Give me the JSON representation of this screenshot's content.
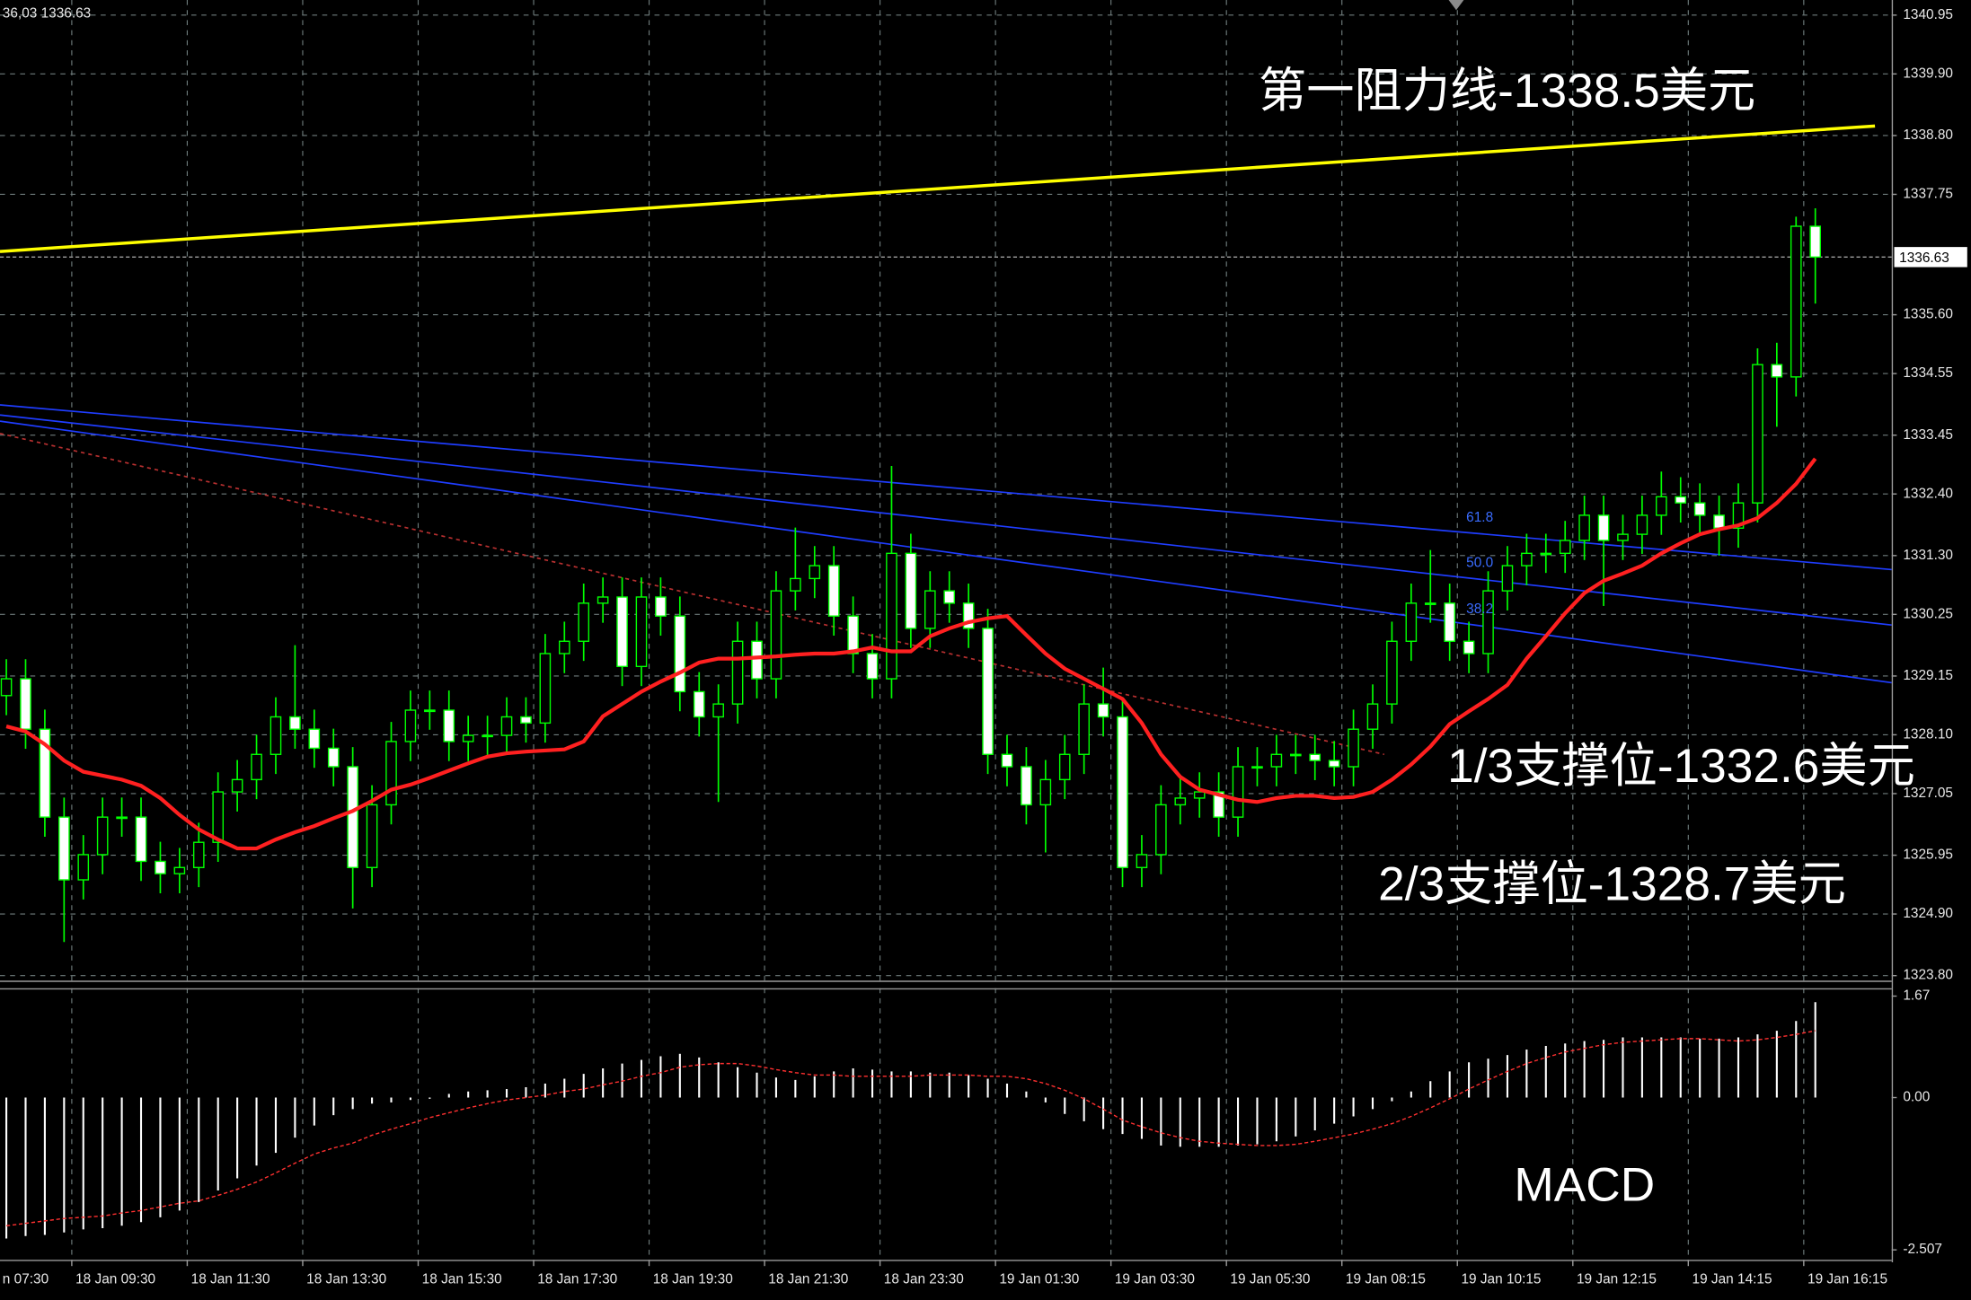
{
  "chart_data": [
    {
      "type": "candlestick",
      "corner_text": "36,03 1336.63",
      "open": [
        1328.8,
        1329.1,
        1328.2,
        1326.63,
        1325.51,
        1325.96,
        1326.63,
        1326.63,
        1325.84,
        1325.62,
        1325.73,
        1326.18,
        1327.08,
        1327.3,
        1327.75,
        1328.42,
        1328.2,
        1327.86,
        1327.53,
        1325.73,
        1326.85,
        1327.98,
        1328.54,
        1328.54,
        1327.98,
        1328.09,
        1328.09,
        1328.42,
        1328.31,
        1329.55,
        1329.77,
        1330.45,
        1330.56,
        1329.32,
        1330.56,
        1330.22,
        1328.87,
        1328.42,
        1328.65,
        1329.77,
        1329.1,
        1330.67,
        1330.89,
        1331.12,
        1330.22,
        1329.55,
        1329.1,
        1331.34,
        1330.0,
        1330.67,
        1330.45,
        1330.0,
        1327.75,
        1327.53,
        1326.85,
        1327.3,
        1327.75,
        1328.65,
        1328.42,
        1325.73,
        1325.96,
        1326.85,
        1326.97,
        1327.08,
        1326.63,
        1327.53,
        1327.53,
        1327.75,
        1327.75,
        1327.64,
        1327.53,
        1328.2,
        1328.65,
        1329.77,
        1330.45,
        1330.45,
        1329.77,
        1329.55,
        1330.67,
        1331.12,
        1331.34,
        1331.34,
        1331.57,
        1332.02,
        1331.57,
        1331.68,
        1332.02,
        1332.35,
        1332.24,
        1332.02,
        1331.79,
        1332.24,
        1334.71,
        1334.49,
        1337.18
      ],
      "high": [
        1329.45,
        1329.45,
        1328.55,
        1326.98,
        1326.31,
        1326.98,
        1326.98,
        1326.98,
        1326.19,
        1326.08,
        1326.53,
        1327.43,
        1327.65,
        1328.1,
        1328.77,
        1329.7,
        1328.55,
        1328.21,
        1327.88,
        1327.2,
        1328.33,
        1328.89,
        1328.89,
        1328.89,
        1328.44,
        1328.44,
        1328.77,
        1328.77,
        1329.9,
        1330.12,
        1330.8,
        1330.91,
        1330.91,
        1330.91,
        1330.91,
        1330.57,
        1329.22,
        1329.0,
        1330.12,
        1330.12,
        1331.02,
        1331.8,
        1331.47,
        1331.47,
        1330.57,
        1329.9,
        1332.9,
        1331.69,
        1331.02,
        1331.02,
        1330.8,
        1330.35,
        1328.1,
        1327.88,
        1327.65,
        1328.1,
        1329.0,
        1329.3,
        1328.77,
        1326.31,
        1327.2,
        1327.32,
        1327.43,
        1327.43,
        1327.88,
        1327.88,
        1328.1,
        1328.1,
        1328.1,
        1327.99,
        1328.55,
        1329.0,
        1330.12,
        1330.8,
        1331.4,
        1330.8,
        1330.12,
        1331.02,
        1331.47,
        1331.69,
        1331.69,
        1331.92,
        1332.37,
        1332.37,
        1332.03,
        1332.37,
        1332.8,
        1332.7,
        1332.59,
        1332.37,
        1332.59,
        1335.0,
        1335.1,
        1337.35,
        1337.5
      ],
      "low": [
        1328.45,
        1327.85,
        1326.28,
        1324.4,
        1325.16,
        1325.61,
        1326.28,
        1325.49,
        1325.27,
        1325.27,
        1325.38,
        1325.83,
        1326.73,
        1326.95,
        1327.4,
        1327.85,
        1327.51,
        1327.18,
        1325.0,
        1325.38,
        1326.5,
        1327.63,
        1328.19,
        1327.63,
        1327.63,
        1327.74,
        1327.74,
        1327.96,
        1327.96,
        1329.2,
        1329.42,
        1330.1,
        1328.97,
        1328.97,
        1329.87,
        1328.52,
        1328.07,
        1326.9,
        1328.3,
        1328.75,
        1328.75,
        1330.32,
        1330.54,
        1329.87,
        1329.2,
        1328.75,
        1328.75,
        1329.65,
        1329.65,
        1330.1,
        1329.65,
        1327.4,
        1327.18,
        1326.5,
        1326.0,
        1326.95,
        1327.4,
        1328.07,
        1325.38,
        1325.38,
        1325.61,
        1326.5,
        1326.62,
        1326.28,
        1326.28,
        1327.18,
        1327.18,
        1327.4,
        1327.29,
        1327.18,
        1327.18,
        1327.85,
        1328.3,
        1329.42,
        1330.1,
        1329.42,
        1329.2,
        1329.2,
        1330.32,
        1330.77,
        1330.99,
        1330.99,
        1331.22,
        1330.4,
        1331.22,
        1331.33,
        1331.67,
        1331.89,
        1331.67,
        1331.3,
        1331.44,
        1331.89,
        1333.6,
        1334.14,
        1335.8
      ],
      "close": [
        1329.1,
        1328.2,
        1326.63,
        1325.51,
        1325.96,
        1326.63,
        1326.63,
        1325.84,
        1325.62,
        1325.73,
        1326.18,
        1327.08,
        1327.3,
        1327.75,
        1328.42,
        1328.2,
        1327.86,
        1327.53,
        1325.73,
        1326.85,
        1327.98,
        1328.54,
        1328.54,
        1327.98,
        1328.09,
        1328.09,
        1328.42,
        1328.31,
        1329.55,
        1329.77,
        1330.45,
        1330.56,
        1329.32,
        1330.56,
        1330.22,
        1328.87,
        1328.42,
        1328.65,
        1329.77,
        1329.1,
        1330.67,
        1330.89,
        1331.12,
        1330.22,
        1329.55,
        1329.1,
        1331.34,
        1330.0,
        1330.67,
        1330.45,
        1330.0,
        1327.75,
        1327.53,
        1326.85,
        1327.3,
        1327.75,
        1328.65,
        1328.42,
        1325.73,
        1325.96,
        1326.85,
        1326.97,
        1327.08,
        1326.63,
        1327.53,
        1327.53,
        1327.75,
        1327.75,
        1327.64,
        1327.53,
        1328.2,
        1328.65,
        1329.77,
        1330.45,
        1330.45,
        1329.77,
        1329.55,
        1330.67,
        1331.12,
        1331.34,
        1331.34,
        1331.57,
        1332.02,
        1331.57,
        1331.68,
        1332.02,
        1332.35,
        1332.24,
        1332.02,
        1331.79,
        1332.24,
        1334.71,
        1334.49,
        1337.18,
        1336.63
      ],
      "bull_fill": "#000000",
      "bear_fill": "#ffffff",
      "wick_color": "#00ff00",
      "ma": {
        "color": "#ff2020",
        "values": [
          1328.25,
          1328.16,
          1327.93,
          1327.64,
          1327.44,
          1327.37,
          1327.3,
          1327.19,
          1326.97,
          1326.67,
          1326.41,
          1326.23,
          1326.07,
          1326.07,
          1326.23,
          1326.36,
          1326.47,
          1326.61,
          1326.74,
          1326.92,
          1327.12,
          1327.21,
          1327.33,
          1327.46,
          1327.59,
          1327.71,
          1327.77,
          1327.8,
          1327.82,
          1327.84,
          1327.98,
          1328.43,
          1328.65,
          1328.87,
          1329.05,
          1329.21,
          1329.39,
          1329.46,
          1329.46,
          1329.48,
          1329.5,
          1329.53,
          1329.55,
          1329.55,
          1329.59,
          1329.66,
          1329.59,
          1329.59,
          1329.86,
          1330.0,
          1330.11,
          1330.18,
          1330.22,
          1329.88,
          1329.55,
          1329.28,
          1329.1,
          1328.92,
          1328.74,
          1328.31,
          1327.75,
          1327.35,
          1327.12,
          1327.03,
          1326.94,
          1326.9,
          1326.97,
          1327.01,
          1327.01,
          1326.97,
          1326.99,
          1327.08,
          1327.3,
          1327.57,
          1327.89,
          1328.29,
          1328.52,
          1328.74,
          1328.99,
          1329.46,
          1329.86,
          1330.27,
          1330.63,
          1330.85,
          1330.98,
          1331.12,
          1331.34,
          1331.52,
          1331.68,
          1331.77,
          1331.84,
          1331.97,
          1332.24,
          1332.58,
          1333.03
        ]
      },
      "lines": [
        {
          "color": "#ffff00",
          "x": [
            -0.33,
            97.1
          ],
          "y": [
            1336.73,
            1338.97
          ]
        },
        {
          "color": "#1f3dff",
          "x": [
            -0.33,
            97.97
          ],
          "y": [
            1333.99,
            1331.05
          ]
        },
        {
          "color": "#1f3dff",
          "x": [
            -0.33,
            97.97
          ],
          "y": [
            1333.81,
            1330.06
          ]
        },
        {
          "color": "#1f3dff",
          "x": [
            -0.33,
            97.97
          ],
          "y": [
            1333.7,
            1329.03
          ]
        },
        {
          "color": "#b83030",
          "dashed": true,
          "x": [
            -0.33,
            71.6
          ],
          "y": [
            1333.48,
            1327.75
          ]
        }
      ],
      "fib_levels": [
        "61.8",
        "50.0",
        "38.2"
      ],
      "current_price": 1336.63,
      "annotations": [
        "第一阻力线-1338.5美元",
        "1/3支撑位-1332.6美元",
        "2/3支撑位-1328.7美元"
      ],
      "xlim": [
        -0.33,
        97.97
      ],
      "xticks": [
        {
          "value": -2.6,
          "label": "n 07:30"
        },
        {
          "value": 3.4,
          "label": "18 Jan 09:30"
        },
        {
          "value": 9.4,
          "label": "18 Jan 11:30"
        },
        {
          "value": 15.4,
          "label": "18 Jan 13:30"
        },
        {
          "value": 21.4,
          "label": "18 Jan 15:30"
        },
        {
          "value": 27.4,
          "label": "18 Jan 17:30"
        },
        {
          "value": 33.4,
          "label": "18 Jan 19:30"
        },
        {
          "value": 39.4,
          "label": "18 Jan 21:30"
        },
        {
          "value": 45.4,
          "label": "18 Jan 23:30"
        },
        {
          "value": 51.4,
          "label": "19 Jan 01:30"
        },
        {
          "value": 57.4,
          "label": "19 Jan 03:30"
        },
        {
          "value": 63.4,
          "label": "19 Jan 05:30"
        },
        {
          "value": 69.4,
          "label": "19 Jan 08:15"
        },
        {
          "value": 75.4,
          "label": "19 Jan 10:15"
        },
        {
          "value": 81.4,
          "label": "19 Jan 12:15"
        },
        {
          "value": 87.4,
          "label": "19 Jan 14:15"
        },
        {
          "value": 93.4,
          "label": "19 Jan 16:15"
        }
      ],
      "ylim": [
        1323.71,
        1341.22
      ],
      "yticks": [
        1340.95,
        {
          "value": 1339.9,
          "label": "1339.90"
        },
        {
          "value": 1338.8,
          "label": "1338.80"
        },
        1337.75,
        {
          "value": 1335.6,
          "label": "1335.60"
        },
        1334.55,
        1333.45,
        {
          "value": 1332.4,
          "label": "1332.40"
        },
        {
          "value": 1331.3,
          "label": "1331.30"
        },
        1330.25,
        1329.15,
        {
          "value": 1328.1,
          "label": "1328.10"
        },
        1327.05,
        1325.95,
        {
          "value": 1324.9,
          "label": "1324.90"
        },
        {
          "value": 1323.8,
          "label": "1323.80"
        }
      ],
      "grid": true
    },
    {
      "type": "macd",
      "label": "MACD",
      "histogram": [
        -2.32,
        -2.28,
        -2.26,
        -2.22,
        -2.17,
        -2.15,
        -2.11,
        -2.05,
        -1.97,
        -1.86,
        -1.72,
        -1.53,
        -1.33,
        -1.12,
        -0.91,
        -0.66,
        -0.46,
        -0.29,
        -0.19,
        -0.1,
        -0.08,
        -0.04,
        -0.02,
        0.06,
        0.1,
        0.12,
        0.14,
        0.17,
        0.23,
        0.31,
        0.39,
        0.48,
        0.56,
        0.62,
        0.68,
        0.72,
        0.66,
        0.58,
        0.5,
        0.41,
        0.33,
        0.29,
        0.35,
        0.43,
        0.48,
        0.46,
        0.43,
        0.43,
        0.41,
        0.41,
        0.37,
        0.31,
        0.23,
        0.1,
        -0.08,
        -0.27,
        -0.39,
        -0.52,
        -0.6,
        -0.68,
        -0.79,
        -0.81,
        -0.81,
        -0.81,
        -0.79,
        -0.77,
        -0.72,
        -0.64,
        -0.54,
        -0.43,
        -0.31,
        -0.19,
        -0.06,
        0.1,
        0.27,
        0.43,
        0.58,
        0.64,
        0.7,
        0.79,
        0.85,
        0.89,
        0.93,
        0.95,
        0.99,
        0.99,
        0.99,
        0.99,
        0.97,
        0.97,
        0.99,
        1.04,
        1.1,
        1.26,
        1.57
      ],
      "signal": [
        -2.11,
        -2.07,
        -2.03,
        -1.99,
        -1.97,
        -1.95,
        -1.9,
        -1.86,
        -1.8,
        -1.74,
        -1.7,
        -1.61,
        -1.51,
        -1.39,
        -1.24,
        -1.08,
        -0.93,
        -0.83,
        -0.75,
        -0.62,
        -0.52,
        -0.43,
        -0.33,
        -0.25,
        -0.17,
        -0.1,
        -0.04,
        0,
        0.04,
        0.1,
        0.14,
        0.21,
        0.27,
        0.35,
        0.41,
        0.5,
        0.54,
        0.56,
        0.56,
        0.52,
        0.46,
        0.41,
        0.37,
        0.37,
        0.35,
        0.35,
        0.35,
        0.35,
        0.37,
        0.37,
        0.37,
        0.35,
        0.35,
        0.31,
        0.23,
        0.12,
        -0.02,
        -0.19,
        -0.37,
        -0.48,
        -0.58,
        -0.66,
        -0.72,
        -0.75,
        -0.77,
        -0.79,
        -0.79,
        -0.77,
        -0.72,
        -0.66,
        -0.6,
        -0.52,
        -0.43,
        -0.31,
        -0.17,
        -0.02,
        0.14,
        0.29,
        0.43,
        0.56,
        0.66,
        0.75,
        0.81,
        0.87,
        0.91,
        0.93,
        0.95,
        0.97,
        0.97,
        0.95,
        0.93,
        0.95,
        0.99,
        1.04,
        1.1
      ],
      "hist_color": "#ffffff",
      "signal_color": "#ff3030",
      "ylim": [
        -2.67,
        1.8
      ],
      "yticks": [
        1.67,
        {
          "value": 0,
          "label": "0.00"
        },
        -2.507
      ]
    }
  ]
}
